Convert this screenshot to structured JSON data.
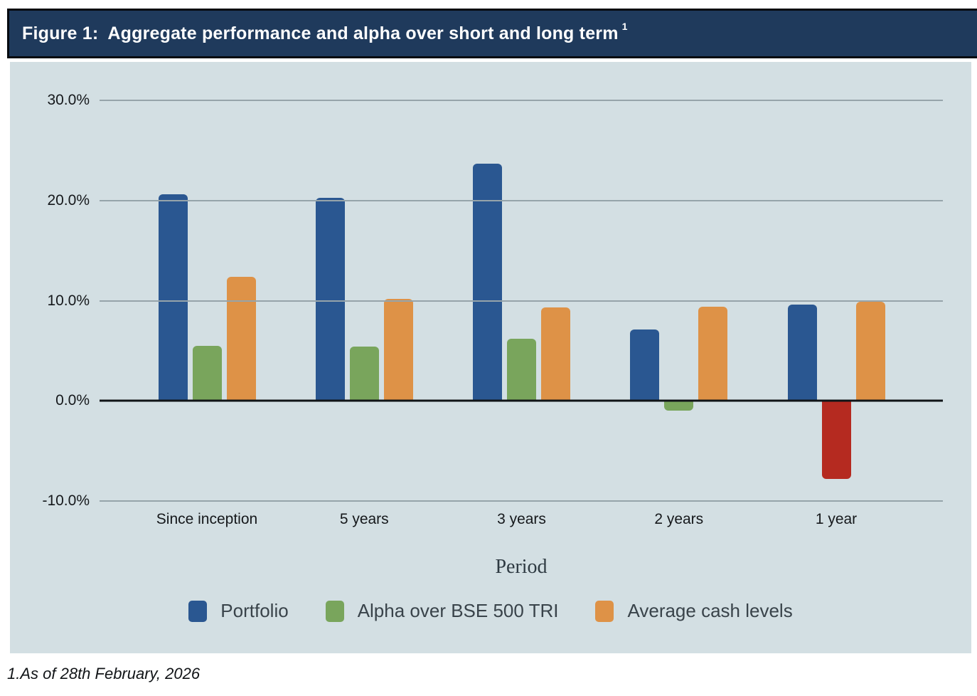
{
  "figure": {
    "label": "Figure 1:",
    "title": "Aggregate performance and alpha over short and long term",
    "title_superscript": "1"
  },
  "footnote": "1.As of 28th February, 2026",
  "colors": {
    "header_bg": "#1f3a5c",
    "header_border": "#060a10",
    "panel_bg": "#d3dfe3",
    "gridline": "#96a4aa",
    "zero_axis": "#101417",
    "portfolio_blue": "#2a5791",
    "alpha_green": "#79a55c",
    "cash_orange": "#de9247",
    "negative_red": "#b52a20"
  },
  "chart_data": {
    "type": "bar",
    "title": "Figure 1: Aggregate performance and alpha over short and long term",
    "categories": [
      "Since inception",
      "5 years",
      "3 years",
      "2 years",
      "1 year"
    ],
    "series": [
      {
        "name": "Portfolio",
        "color": "#2a5791",
        "values": [
          20.6,
          20.3,
          23.7,
          7.1,
          9.6
        ]
      },
      {
        "name": "Alpha over BSE 500 TRI",
        "color": "#79a55c",
        "values": [
          5.5,
          5.4,
          6.2,
          -1.0,
          -7.8
        ]
      },
      {
        "name": "Average cash levels",
        "color": "#de9247",
        "values": [
          12.4,
          10.2,
          9.3,
          9.4,
          9.9
        ]
      }
    ],
    "bar_color_overrides": [
      {
        "series_index": 1,
        "category_index": 4,
        "color": "#b52a20"
      }
    ],
    "xlabel": "Period",
    "ylabel": "",
    "ylim": [
      -10,
      30
    ],
    "yticks": [
      {
        "value": 30,
        "label": "30.0%"
      },
      {
        "value": 20,
        "label": "20.0%"
      },
      {
        "value": 10,
        "label": "10.0%"
      },
      {
        "value": 0,
        "label": "0.0%"
      },
      {
        "value": -10,
        "label": "-10.0%"
      }
    ],
    "grid": true,
    "legend_position": "bottom"
  }
}
